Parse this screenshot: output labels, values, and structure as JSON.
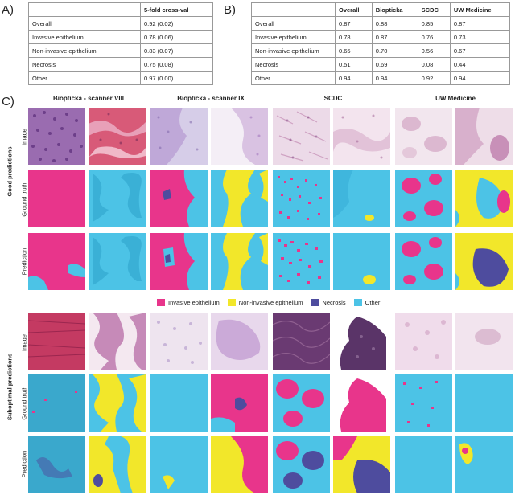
{
  "panel_a": {
    "letter": "A)",
    "header": [
      "",
      "5-fold cross-val"
    ],
    "rows": [
      [
        "Overall",
        "0.92 (0.02)"
      ],
      [
        "Invasive epithelium",
        "0.78 (0.06)"
      ],
      [
        "Non-invasive epithelium",
        "0.83 (0.07)"
      ],
      [
        "Necrosis",
        "0.75 (0.08)"
      ],
      [
        "Other",
        "0.97 (0.00)"
      ]
    ]
  },
  "panel_b": {
    "letter": "B)",
    "header": [
      "",
      "Overall",
      "Biopticka",
      "SCDC",
      "UW Medicine"
    ],
    "rows": [
      [
        "Overall",
        "0.87",
        "0.88",
        "0.85",
        "0.87"
      ],
      [
        "Invasive epithelium",
        "0.78",
        "0.87",
        "0.76",
        "0.73"
      ],
      [
        "Non-invasive epithelium",
        "0.65",
        "0.70",
        "0.56",
        "0.67"
      ],
      [
        "Necrosis",
        "0.51",
        "0.69",
        "0.08",
        "0.44"
      ],
      [
        "Other",
        "0.94",
        "0.94",
        "0.92",
        "0.94"
      ]
    ]
  },
  "panel_c": {
    "letter": "C)",
    "columns": [
      "Biopticka - scanner VIII",
      "Biopticka - scanner IX",
      "SCDC",
      "UW Medicine"
    ],
    "row_labels": [
      "Image",
      "Ground truth",
      "Prediction"
    ],
    "groups": [
      "Good predictions",
      "Suboptimal predictions"
    ],
    "legend": [
      {
        "label": "Invasive epithelium",
        "color": "#e8358b"
      },
      {
        "label": "Non-invasive epithelium",
        "color": "#f2e72a"
      },
      {
        "label": "Necrosis",
        "color": "#4e4c9e"
      },
      {
        "label": "Other",
        "color": "#4cc3e6"
      }
    ]
  }
}
